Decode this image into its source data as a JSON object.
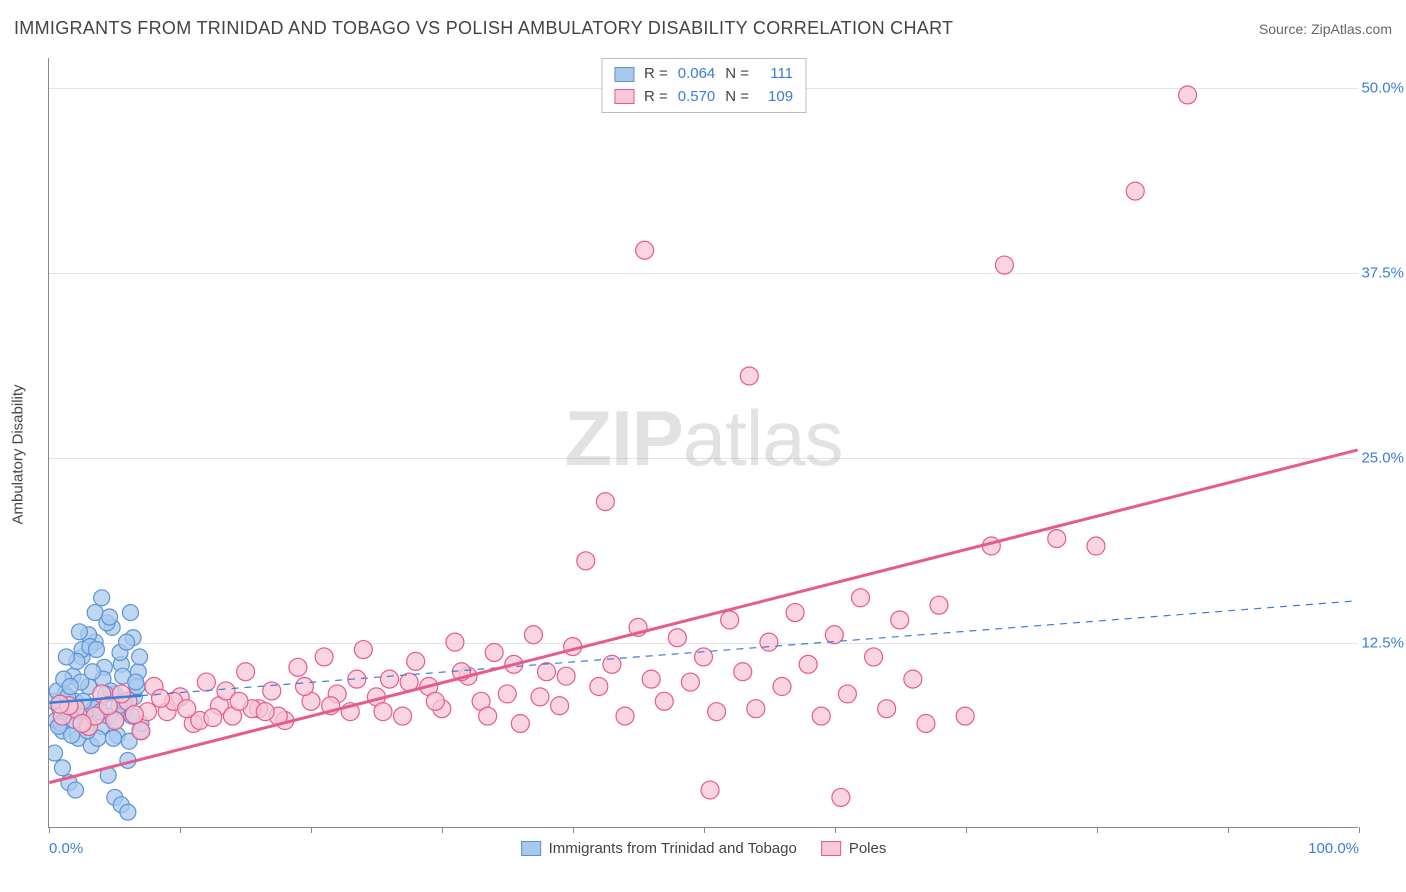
{
  "title": "IMMIGRANTS FROM TRINIDAD AND TOBAGO VS POLISH AMBULATORY DISABILITY CORRELATION CHART",
  "source": "Source: ZipAtlas.com",
  "watermark": {
    "bold": "ZIP",
    "light": "atlas"
  },
  "y_axis_title": "Ambulatory Disability",
  "chart": {
    "type": "scatter",
    "xlim": [
      0,
      100
    ],
    "ylim": [
      0,
      52
    ],
    "x_ticks": [
      0,
      10,
      20,
      30,
      40,
      50,
      60,
      70,
      80,
      90,
      100
    ],
    "x_tick_labels": {
      "0": "0.0%",
      "100": "100.0%"
    },
    "y_gridlines": [
      12.5,
      25.0,
      37.5,
      50.0
    ],
    "y_tick_labels": [
      "12.5%",
      "25.0%",
      "37.5%",
      "50.0%"
    ],
    "background_color": "#ffffff",
    "grid_color": "#e4e4e4",
    "axis_color": "#888888",
    "series": [
      {
        "name": "Immigrants from Trinidad and Tobago",
        "marker_fill": "#a9c9ec",
        "marker_stroke": "#5a93d6",
        "marker_opacity": 0.75,
        "marker_radius": 8,
        "line_color": "#3b7dd8",
        "line_style": "solid-then-dashed",
        "line_width_solid": 2.5,
        "line_width_dashed": 1.2,
        "line_solid_xmax": 7,
        "trend": {
          "y_at_x0": 8.4,
          "y_at_x100": 15.3
        },
        "R": "0.064",
        "N": "111",
        "points": [
          [
            0.5,
            7.2
          ],
          [
            0.8,
            8.0
          ],
          [
            1.0,
            6.5
          ],
          [
            1.2,
            9.0
          ],
          [
            1.5,
            7.8
          ],
          [
            1.8,
            10.2
          ],
          [
            2.0,
            8.5
          ],
          [
            2.2,
            6.0
          ],
          [
            2.5,
            11.5
          ],
          [
            2.8,
            7.0
          ],
          [
            3.0,
            9.5
          ],
          [
            3.2,
            5.5
          ],
          [
            3.5,
            12.5
          ],
          [
            3.8,
            8.2
          ],
          [
            4.0,
            6.8
          ],
          [
            4.2,
            10.8
          ],
          [
            4.5,
            7.5
          ],
          [
            4.8,
            13.5
          ],
          [
            5.0,
            9.0
          ],
          [
            5.2,
            6.2
          ],
          [
            5.5,
            11.0
          ],
          [
            5.8,
            7.8
          ],
          [
            6.0,
            4.5
          ],
          [
            6.2,
            14.5
          ],
          [
            6.5,
            8.8
          ],
          [
            6.8,
            10.5
          ],
          [
            7.0,
            6.5
          ],
          [
            1.0,
            4.0
          ],
          [
            1.5,
            3.0
          ],
          [
            2.0,
            2.5
          ],
          [
            2.5,
            12.0
          ],
          [
            3.0,
            13.0
          ],
          [
            3.5,
            14.5
          ],
          [
            4.0,
            15.5
          ],
          [
            4.5,
            3.5
          ],
          [
            5.0,
            2.0
          ],
          [
            5.5,
            1.5
          ],
          [
            6.0,
            1.0
          ],
          [
            0.3,
            8.5
          ],
          [
            0.6,
            9.2
          ],
          [
            0.9,
            7.0
          ],
          [
            1.1,
            10.0
          ],
          [
            1.4,
            8.8
          ],
          [
            1.7,
            6.2
          ],
          [
            2.1,
            11.2
          ],
          [
            2.4,
            9.8
          ],
          [
            2.7,
            7.5
          ],
          [
            3.1,
            12.2
          ],
          [
            3.4,
            8.0
          ],
          [
            3.7,
            6.0
          ],
          [
            4.1,
            10.0
          ],
          [
            4.4,
            13.8
          ],
          [
            4.7,
            9.2
          ],
          [
            5.1,
            7.2
          ],
          [
            5.4,
            11.8
          ],
          [
            5.7,
            8.5
          ],
          [
            6.1,
            5.8
          ],
          [
            6.4,
            12.8
          ],
          [
            6.7,
            9.5
          ],
          [
            7.0,
            7.0
          ],
          [
            0.4,
            5.0
          ],
          [
            0.7,
            6.8
          ],
          [
            1.3,
            11.5
          ],
          [
            1.6,
            9.5
          ],
          [
            1.9,
            7.2
          ],
          [
            2.3,
            13.2
          ],
          [
            2.6,
            8.5
          ],
          [
            2.9,
            6.5
          ],
          [
            3.3,
            10.5
          ],
          [
            3.6,
            12.0
          ],
          [
            3.9,
            7.8
          ],
          [
            4.3,
            9.0
          ],
          [
            4.6,
            14.2
          ],
          [
            4.9,
            6.0
          ],
          [
            5.3,
            8.2
          ],
          [
            5.6,
            10.2
          ],
          [
            5.9,
            12.5
          ],
          [
            6.3,
            7.5
          ],
          [
            6.6,
            9.8
          ],
          [
            6.9,
            11.5
          ]
        ]
      },
      {
        "name": "Poles",
        "marker_fill": "#f6c7d6",
        "marker_stroke": "#e75a8d",
        "marker_opacity": 0.75,
        "marker_radius": 9,
        "line_color": "#e75a8d",
        "line_style": "solid",
        "line_width_solid": 3,
        "trend": {
          "y_at_x0": 3.0,
          "y_at_x100": 25.5
        },
        "R": "0.570",
        "N": "109",
        "points": [
          [
            1.0,
            7.5
          ],
          [
            2.0,
            8.0
          ],
          [
            3.0,
            6.8
          ],
          [
            4.0,
            9.0
          ],
          [
            5.0,
            7.2
          ],
          [
            6.0,
            8.5
          ],
          [
            7.0,
            6.5
          ],
          [
            8.0,
            9.5
          ],
          [
            9.0,
            7.8
          ],
          [
            10.0,
            8.8
          ],
          [
            11.0,
            7.0
          ],
          [
            12.0,
            9.8
          ],
          [
            13.0,
            8.2
          ],
          [
            14.0,
            7.5
          ],
          [
            15.0,
            10.5
          ],
          [
            16.0,
            8.0
          ],
          [
            17.0,
            9.2
          ],
          [
            18.0,
            7.2
          ],
          [
            19.0,
            10.8
          ],
          [
            20.0,
            8.5
          ],
          [
            21.0,
            11.5
          ],
          [
            22.0,
            9.0
          ],
          [
            23.0,
            7.8
          ],
          [
            24.0,
            12.0
          ],
          [
            25.0,
            8.8
          ],
          [
            26.0,
            10.0
          ],
          [
            27.0,
            7.5
          ],
          [
            28.0,
            11.2
          ],
          [
            29.0,
            9.5
          ],
          [
            30.0,
            8.0
          ],
          [
            31.0,
            12.5
          ],
          [
            32.0,
            10.2
          ],
          [
            33.0,
            8.5
          ],
          [
            34.0,
            11.8
          ],
          [
            35.0,
            9.0
          ],
          [
            36.0,
            7.0
          ],
          [
            37.0,
            13.0
          ],
          [
            38.0,
            10.5
          ],
          [
            39.0,
            8.2
          ],
          [
            40.0,
            12.2
          ],
          [
            41.0,
            18.0
          ],
          [
            42.0,
            9.5
          ],
          [
            42.5,
            22.0
          ],
          [
            43.0,
            11.0
          ],
          [
            44.0,
            7.5
          ],
          [
            45.0,
            13.5
          ],
          [
            45.5,
            39.0
          ],
          [
            46.0,
            10.0
          ],
          [
            47.0,
            8.5
          ],
          [
            48.0,
            12.8
          ],
          [
            49.0,
            9.8
          ],
          [
            50.0,
            11.5
          ],
          [
            50.5,
            2.5
          ],
          [
            51.0,
            7.8
          ],
          [
            52.0,
            14.0
          ],
          [
            53.0,
            10.5
          ],
          [
            53.5,
            30.5
          ],
          [
            54.0,
            8.0
          ],
          [
            55.0,
            12.5
          ],
          [
            56.0,
            9.5
          ],
          [
            57.0,
            14.5
          ],
          [
            58.0,
            11.0
          ],
          [
            59.0,
            7.5
          ],
          [
            60.0,
            13.0
          ],
          [
            60.5,
            2.0
          ],
          [
            61.0,
            9.0
          ],
          [
            62.0,
            15.5
          ],
          [
            63.0,
            11.5
          ],
          [
            64.0,
            8.0
          ],
          [
            65.0,
            14.0
          ],
          [
            66.0,
            10.0
          ],
          [
            67.0,
            7.0
          ],
          [
            68.0,
            15.0
          ],
          [
            70.0,
            7.5
          ],
          [
            72.0,
            19.0
          ],
          [
            73.0,
            38.0
          ],
          [
            77.0,
            19.5
          ],
          [
            80.0,
            19.0
          ],
          [
            83.0,
            43.0
          ],
          [
            87.0,
            49.5
          ],
          [
            1.5,
            8.2
          ],
          [
            3.5,
            7.5
          ],
          [
            5.5,
            9.0
          ],
          [
            7.5,
            7.8
          ],
          [
            9.5,
            8.5
          ],
          [
            11.5,
            7.2
          ],
          [
            13.5,
            9.2
          ],
          [
            15.5,
            8.0
          ],
          [
            17.5,
            7.5
          ],
          [
            19.5,
            9.5
          ],
          [
            21.5,
            8.2
          ],
          [
            23.5,
            10.0
          ],
          [
            25.5,
            7.8
          ],
          [
            27.5,
            9.8
          ],
          [
            29.5,
            8.5
          ],
          [
            31.5,
            10.5
          ],
          [
            33.5,
            7.5
          ],
          [
            35.5,
            11.0
          ],
          [
            37.5,
            8.8
          ],
          [
            39.5,
            10.2
          ],
          [
            0.8,
            8.3
          ],
          [
            2.5,
            7.0
          ],
          [
            4.5,
            8.2
          ],
          [
            6.5,
            7.6
          ],
          [
            8.5,
            8.7
          ],
          [
            10.5,
            8.0
          ],
          [
            12.5,
            7.4
          ],
          [
            14.5,
            8.5
          ],
          [
            16.5,
            7.8
          ]
        ]
      }
    ]
  },
  "legend_top": [
    {
      "swatch_fill": "#a9c9ec",
      "swatch_stroke": "#5a93d6",
      "r_label": "R =",
      "n_label": "N ="
    },
    {
      "swatch_fill": "#f6c7d6",
      "swatch_stroke": "#e75a8d",
      "r_label": "R =",
      "n_label": "N ="
    }
  ],
  "legend_bottom": [
    {
      "swatch_fill": "#a9c9ec",
      "swatch_stroke": "#5a93d6",
      "label": "Immigrants from Trinidad and Tobago"
    },
    {
      "swatch_fill": "#f6c7d6",
      "swatch_stroke": "#e75a8d",
      "label": "Poles"
    }
  ]
}
